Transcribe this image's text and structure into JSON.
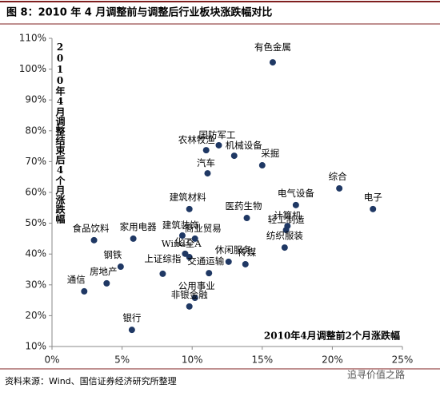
{
  "chart_data": {
    "type": "scatter",
    "title": "图 8：2010 年 4 月调整前与调整后行业板块涨跌幅对比",
    "x_label": "2010年4月调整前2个月涨跌幅",
    "y_label": "2010年4月调整结束后4个月涨跌幅",
    "source": "资料来源：Wind、国信证券经济研究所整理",
    "watermark": "追寻价值之路",
    "color": "#1f3864",
    "labels": [
      "有色金属",
      "国防军工",
      "农林牧渔",
      "机械设备",
      "采掘",
      "汽车",
      "综合",
      "电子",
      "电气设备",
      "建筑材料",
      "医药生物",
      "计算机",
      "轻工制造",
      "纺织服装",
      "食品饮料",
      "家用电器",
      "建筑装饰",
      "商业贸易",
      "化工",
      "Wind全A",
      "钢铁",
      "休闲服务",
      "传媒",
      "上证综指",
      "交通运输",
      "房地产",
      "通信",
      "公用事业",
      "非银金融",
      "银行"
    ],
    "x": [
      15.75,
      11.9,
      11.0,
      13.0,
      15.0,
      11.1,
      20.5,
      22.9,
      17.4,
      9.8,
      13.9,
      16.8,
      16.7,
      16.6,
      3.0,
      5.8,
      9.3,
      10.2,
      9.5,
      9.8,
      4.9,
      12.6,
      13.8,
      7.9,
      11.2,
      3.9,
      2.3,
      10.2,
      9.8,
      5.7
    ],
    "values": [
      102.2,
      75.3,
      73.7,
      71.9,
      68.8,
      66.2,
      61.3,
      54.6,
      55.9,
      54.6,
      51.7,
      49.1,
      47.8,
      42.1,
      44.5,
      45.0,
      46.0,
      45.0,
      40.1,
      39.0,
      35.9,
      37.5,
      36.7,
      33.6,
      33.8,
      30.5,
      27.9,
      25.8,
      23.0,
      15.4
    ],
    "xlim": [
      0,
      25
    ],
    "xticks": [
      {
        "value": 0,
        "label": "0%"
      },
      {
        "value": 5,
        "label": "5%"
      },
      {
        "value": 10,
        "label": "10%"
      },
      {
        "value": 15,
        "label": "15%"
      },
      {
        "value": 20,
        "label": "20%"
      },
      {
        "value": 25,
        "label": "25%"
      }
    ],
    "ylim": [
      10,
      110
    ],
    "yticks": [
      {
        "value": 10,
        "label": "10%"
      },
      {
        "value": 20,
        "label": "20%"
      },
      {
        "value": 30,
        "label": "30%"
      },
      {
        "value": 40,
        "label": "40%"
      },
      {
        "value": 50,
        "label": "50%"
      },
      {
        "value": 60,
        "label": "60%"
      },
      {
        "value": 70,
        "label": "70%"
      },
      {
        "value": 80,
        "label": "80%"
      },
      {
        "value": 90,
        "label": "90%"
      },
      {
        "value": 100,
        "label": "100%"
      },
      {
        "value": 110,
        "label": "110%"
      }
    ]
  }
}
